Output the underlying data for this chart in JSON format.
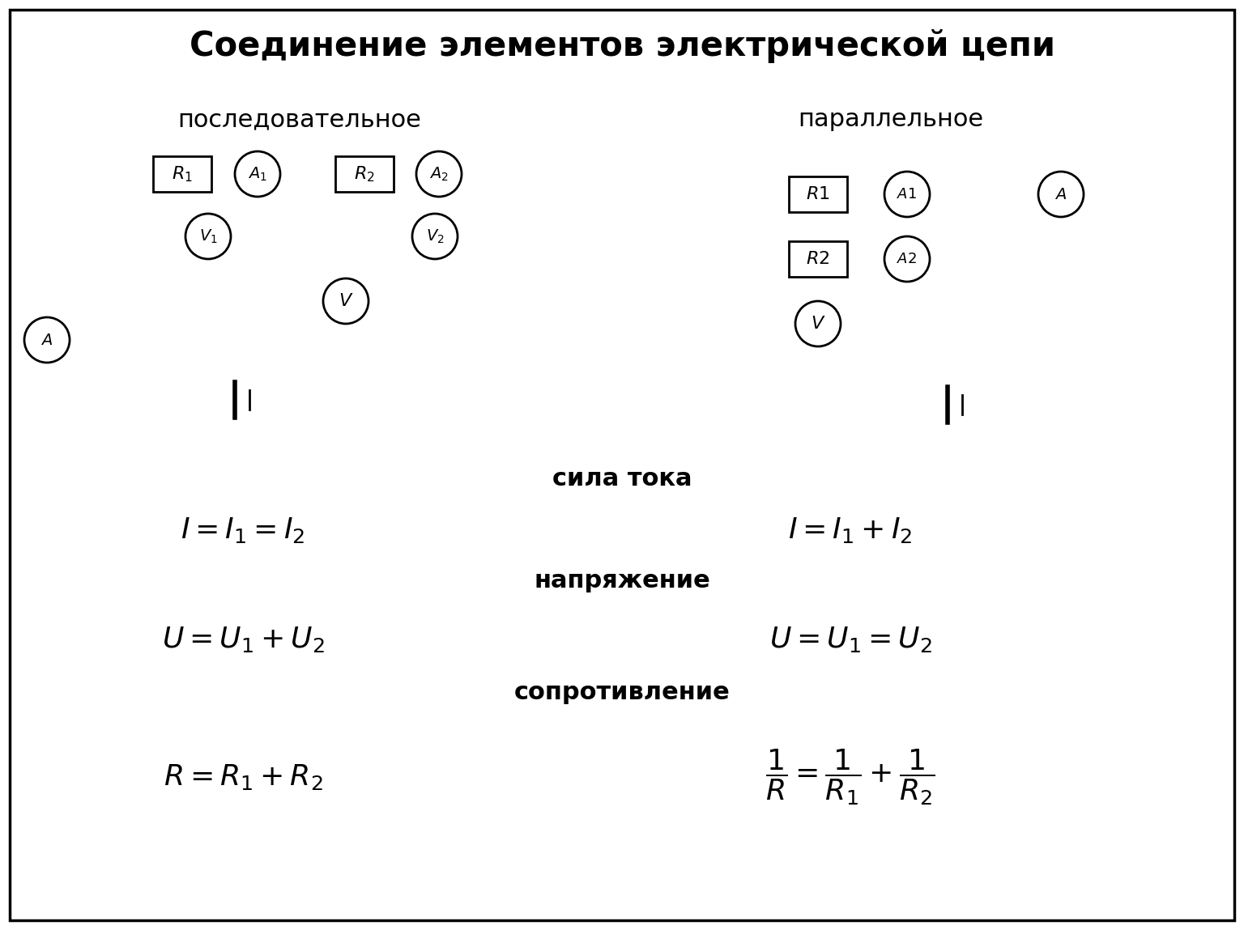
{
  "title": "Соединение элементов электрической цепи",
  "subtitle_left": "последовательное",
  "subtitle_right": "параллельное",
  "current_label": "сила тока",
  "voltage_label": "напряжение",
  "resistance_label": "сопротивление",
  "figw": 15.36,
  "figh": 11.49,
  "dpi": 100
}
